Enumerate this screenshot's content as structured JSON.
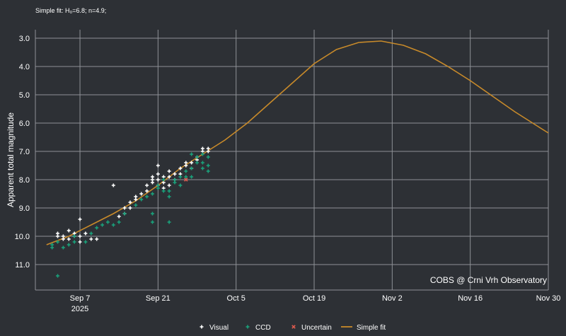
{
  "fit_note": "Simple fit: H₀=6.8; n=4.9;",
  "credit": "COBS @ Crni Vrh Observatory",
  "chart_data": {
    "type": "scatter",
    "title": "",
    "xlabel": "",
    "ylabel": "Apparent total magnitude",
    "y_inverted": true,
    "ylim": [
      11.9,
      2.7
    ],
    "xlim": [
      "2025-08-30",
      "2025-11-30"
    ],
    "grid": true,
    "legend_position": "bottom-center",
    "x_ticks": [
      {
        "label": "Sep 7",
        "sublabel": "2025",
        "date": "2025-09-07"
      },
      {
        "label": "Sep 21",
        "sublabel": "",
        "date": "2025-09-21"
      },
      {
        "label": "Oct 5",
        "sublabel": "",
        "date": "2025-10-05"
      },
      {
        "label": "Oct 19",
        "sublabel": "",
        "date": "2025-10-19"
      },
      {
        "label": "Nov 2",
        "sublabel": "",
        "date": "2025-11-02"
      },
      {
        "label": "Nov 16",
        "sublabel": "",
        "date": "2025-11-16"
      },
      {
        "label": "Nov 30",
        "sublabel": "",
        "date": "2025-11-30"
      }
    ],
    "y_ticks": [
      "3.0",
      "4.0",
      "5.0",
      "6.0",
      "7.0",
      "8.0",
      "9.0",
      "10.0",
      "11.0"
    ],
    "series": [
      {
        "name": "Visual",
        "marker": "plus",
        "color": "#ffffff",
        "points": [
          [
            "2025-09-03",
            9.9
          ],
          [
            "2025-09-03",
            10.0
          ],
          [
            "2025-09-04",
            10.1
          ],
          [
            "2025-09-04",
            10.0
          ],
          [
            "2025-09-05",
            9.8
          ],
          [
            "2025-09-05",
            10.1
          ],
          [
            "2025-09-06",
            10.0
          ],
          [
            "2025-09-06",
            9.9
          ],
          [
            "2025-09-07",
            9.4
          ],
          [
            "2025-09-07",
            10.0
          ],
          [
            "2025-09-07",
            10.2
          ],
          [
            "2025-09-08",
            9.9
          ],
          [
            "2025-09-09",
            10.1
          ],
          [
            "2025-09-10",
            10.1
          ],
          [
            "2025-09-13",
            8.2
          ],
          [
            "2025-09-14",
            9.3
          ],
          [
            "2025-09-15",
            9.2
          ],
          [
            "2025-09-15",
            9.0
          ],
          [
            "2025-09-16",
            9.0
          ],
          [
            "2025-09-16",
            8.8
          ],
          [
            "2025-09-17",
            8.7
          ],
          [
            "2025-09-17",
            8.6
          ],
          [
            "2025-09-18",
            8.5
          ],
          [
            "2025-09-19",
            8.4
          ],
          [
            "2025-09-19",
            8.2
          ],
          [
            "2025-09-20",
            8.0
          ],
          [
            "2025-09-20",
            7.9
          ],
          [
            "2025-09-20",
            8.1
          ],
          [
            "2025-09-21",
            7.5
          ],
          [
            "2025-09-21",
            7.8
          ],
          [
            "2025-09-21",
            8.0
          ],
          [
            "2025-09-21",
            8.2
          ],
          [
            "2025-09-22",
            7.9
          ],
          [
            "2025-09-22",
            8.1
          ],
          [
            "2025-09-22",
            8.3
          ],
          [
            "2025-09-23",
            7.7
          ],
          [
            "2025-09-23",
            7.9
          ],
          [
            "2025-09-23",
            8.2
          ],
          [
            "2025-09-24",
            7.8
          ],
          [
            "2025-09-24",
            8.0
          ],
          [
            "2025-09-25",
            7.6
          ],
          [
            "2025-09-25",
            7.8
          ],
          [
            "2025-09-26",
            7.4
          ],
          [
            "2025-09-26",
            7.5
          ],
          [
            "2025-09-27",
            7.4
          ],
          [
            "2025-09-27",
            7.6
          ],
          [
            "2025-09-28",
            7.3
          ],
          [
            "2025-09-28",
            7.2
          ],
          [
            "2025-09-29",
            7.0
          ],
          [
            "2025-09-29",
            6.9
          ],
          [
            "2025-09-30",
            7.0
          ],
          [
            "2025-09-30",
            6.9
          ]
        ]
      },
      {
        "name": "CCD",
        "marker": "plus",
        "color": "#1aa17b",
        "points": [
          [
            "2025-09-02",
            10.4
          ],
          [
            "2025-09-02",
            10.3
          ],
          [
            "2025-09-03",
            10.2
          ],
          [
            "2025-09-03",
            11.4
          ],
          [
            "2025-09-04",
            10.4
          ],
          [
            "2025-09-05",
            10.3
          ],
          [
            "2025-09-06",
            10.2
          ],
          [
            "2025-09-06",
            10.0
          ],
          [
            "2025-09-08",
            10.2
          ],
          [
            "2025-09-09",
            9.9
          ],
          [
            "2025-09-10",
            9.7
          ],
          [
            "2025-09-11",
            9.6
          ],
          [
            "2025-09-12",
            9.5
          ],
          [
            "2025-09-13",
            9.6
          ],
          [
            "2025-09-14",
            9.5
          ],
          [
            "2025-09-15",
            9.2
          ],
          [
            "2025-09-17",
            8.9
          ],
          [
            "2025-09-18",
            8.7
          ],
          [
            "2025-09-19",
            8.6
          ],
          [
            "2025-09-20",
            9.5
          ],
          [
            "2025-09-20",
            9.2
          ],
          [
            "2025-09-20",
            8.5
          ],
          [
            "2025-09-21",
            8.3
          ],
          [
            "2025-09-21",
            8.2
          ],
          [
            "2025-09-22",
            8.4
          ],
          [
            "2025-09-22",
            8.0
          ],
          [
            "2025-09-23",
            9.5
          ],
          [
            "2025-09-23",
            8.4
          ],
          [
            "2025-09-23",
            8.6
          ],
          [
            "2025-09-24",
            8.0
          ],
          [
            "2025-09-24",
            8.1
          ],
          [
            "2025-09-25",
            7.9
          ],
          [
            "2025-09-25",
            8.2
          ],
          [
            "2025-09-26",
            7.9
          ],
          [
            "2025-09-26",
            7.7
          ],
          [
            "2025-09-27",
            7.1
          ],
          [
            "2025-09-27",
            7.6
          ],
          [
            "2025-09-27",
            7.9
          ],
          [
            "2025-09-28",
            7.2
          ],
          [
            "2025-09-28",
            7.4
          ],
          [
            "2025-09-29",
            7.6
          ],
          [
            "2025-09-29",
            7.4
          ],
          [
            "2025-09-29",
            7.1
          ],
          [
            "2025-09-30",
            7.2
          ],
          [
            "2025-09-30",
            7.5
          ],
          [
            "2025-09-30",
            7.7
          ]
        ]
      },
      {
        "name": "Uncertain",
        "marker": "cross",
        "color": "#e05a4e",
        "points": [
          [
            "2025-09-26",
            8.0
          ]
        ]
      },
      {
        "name": "Simple fit",
        "marker": "line",
        "color": "#c88a2a",
        "points": [
          [
            "2025-09-01",
            10.3
          ],
          [
            "2025-09-05",
            10.0
          ],
          [
            "2025-09-09",
            9.6
          ],
          [
            "2025-09-13",
            9.2
          ],
          [
            "2025-09-17",
            8.75
          ],
          [
            "2025-09-21",
            8.2
          ],
          [
            "2025-09-25",
            7.6
          ],
          [
            "2025-09-29",
            7.1
          ],
          [
            "2025-10-03",
            6.6
          ],
          [
            "2025-10-07",
            6.0
          ],
          [
            "2025-10-11",
            5.3
          ],
          [
            "2025-10-15",
            4.6
          ],
          [
            "2025-10-19",
            3.9
          ],
          [
            "2025-10-23",
            3.4
          ],
          [
            "2025-10-27",
            3.15
          ],
          [
            "2025-10-31",
            3.1
          ],
          [
            "2025-11-04",
            3.25
          ],
          [
            "2025-11-08",
            3.55
          ],
          [
            "2025-11-12",
            4.0
          ],
          [
            "2025-11-16",
            4.5
          ],
          [
            "2025-11-20",
            5.05
          ],
          [
            "2025-11-24",
            5.6
          ],
          [
            "2025-11-28",
            6.1
          ],
          [
            "2025-11-30",
            6.35
          ]
        ]
      }
    ]
  }
}
